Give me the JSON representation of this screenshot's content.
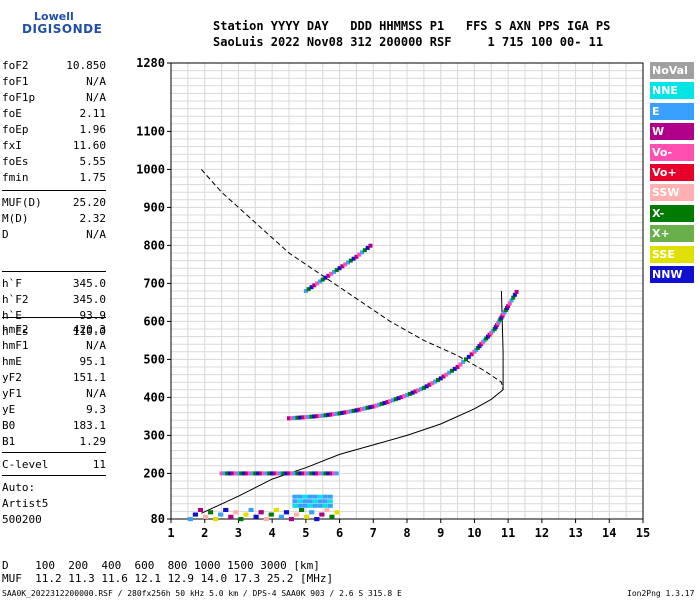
{
  "logo": {
    "line1": "Lowell",
    "line2": "DIGISONDE"
  },
  "header": {
    "line1": "Station YYYY DAY   DDD HHMMSS P1   FFS S AXN PPS IGA PS",
    "line2": "SaoLuis 2022 Nov08 312 200000 RSF     1 715 100 00- 11"
  },
  "params1": [
    {
      "key": "foF2",
      "val": "10.850"
    },
    {
      "key": "foF1",
      "val": "N/A"
    },
    {
      "key": "foF1p",
      "val": "N/A"
    },
    {
      "key": "foE",
      "val": "2.11"
    },
    {
      "key": "foEp",
      "val": "1.96"
    },
    {
      "key": "fxI",
      "val": "11.60"
    },
    {
      "key": "foEs",
      "val": "5.55"
    },
    {
      "key": "fmin",
      "val": "1.75"
    }
  ],
  "params2": [
    {
      "key": "MUF(D)",
      "val": "25.20"
    },
    {
      "key": "M(D)",
      "val": "2.32"
    },
    {
      "key": "D",
      "val": "N/A"
    }
  ],
  "params3": [
    {
      "key": "h`F",
      "val": "345.0"
    },
    {
      "key": "h`F2",
      "val": "345.0"
    },
    {
      "key": "h`E",
      "val": "93.9"
    },
    {
      "key": "h`Es",
      "val": "110.0"
    }
  ],
  "params4": [
    {
      "key": "hmF2",
      "val": "420.3"
    },
    {
      "key": "hmF1",
      "val": "N/A"
    },
    {
      "key": "hmE",
      "val": "95.1"
    },
    {
      "key": "yF2",
      "val": "151.1"
    },
    {
      "key": "yF1",
      "val": "N/A"
    },
    {
      "key": "yE",
      "val": "9.3"
    },
    {
      "key": "B0",
      "val": "183.1"
    },
    {
      "key": "B1",
      "val": "1.29"
    }
  ],
  "params5": [
    {
      "key": "C-level",
      "val": "11"
    }
  ],
  "auto": {
    "line1": "Auto:",
    "line2": "Artist5",
    "line3": "500200"
  },
  "legend": [
    {
      "label": "NoVal",
      "color": "#a0a0a0"
    },
    {
      "label": "NNE",
      "color": "#00e5e5"
    },
    {
      "label": "E",
      "color": "#3aa0ff"
    },
    {
      "label": "W",
      "color": "#b0008a"
    },
    {
      "label": "Vo-",
      "color": "#ff4fb0"
    },
    {
      "label": "Vo+",
      "color": "#e8002a"
    },
    {
      "label": "SSW",
      "color": "#ffb0b0"
    },
    {
      "label": "X-",
      "color": "#007a00"
    },
    {
      "label": "X+",
      "color": "#6ab04a"
    },
    {
      "label": "SSE",
      "color": "#e0e000"
    },
    {
      "label": "NNW",
      "color": "#1010d0"
    }
  ],
  "bottom": {
    "d_line": "D    100  200  400  600  800 1000 1500 3000 [km]",
    "muf_line": "MUF  11.2 11.3 11.6 12.1 12.9 14.0 17.3 25.2 [MHz]"
  },
  "footer": {
    "left": "SAA0K_2022312200000.RSF / 280fx256h 50 kHz 5.0 km / DPS-4 SAA0K 903 / 2.6 S 315.8 E",
    "right": "Ion2Png 1.3.17"
  },
  "chart_data": {
    "type": "scatter",
    "x_ticks": [
      "1",
      "2",
      "3",
      "4",
      "5",
      "6",
      "7",
      "8",
      "9",
      "10",
      "11",
      "12",
      "13",
      "14",
      "15"
    ],
    "y_ticks": [
      "80",
      "200",
      "300",
      "400",
      "500",
      "600",
      "700",
      "800",
      "900",
      "1000",
      "1100",
      "1280"
    ],
    "xlim": [
      1,
      15
    ],
    "ylim": [
      80,
      1280
    ],
    "grid": true,
    "series": [
      {
        "name": "O-trace",
        "color": "#b0008a",
        "x": [
          4.5,
          5.0,
          5.5,
          6.0,
          6.5,
          7.0,
          7.5,
          8.0,
          8.5,
          9.0,
          9.5,
          10.0,
          10.3,
          10.6,
          10.8,
          11.0,
          11.3
        ],
        "y": [
          345,
          348,
          352,
          358,
          366,
          376,
          390,
          406,
          425,
          450,
          480,
          520,
          550,
          580,
          610,
          640,
          685
        ]
      },
      {
        "name": "Es",
        "color": "#3aa0ff",
        "x": [
          2.5,
          3.0,
          3.5,
          4.0,
          4.5,
          5.0,
          5.5,
          6.0
        ],
        "y": [
          200,
          200,
          200,
          200,
          200,
          200,
          200,
          200
        ]
      },
      {
        "name": "multi-hop",
        "color": "#b0008a",
        "x": [
          5.0,
          5.5,
          6.0,
          6.5,
          7.0
        ],
        "y": [
          680,
          710,
          740,
          770,
          805
        ]
      }
    ],
    "profile_solid": {
      "x": [
        1.9,
        3,
        4,
        5,
        6,
        7,
        8,
        9,
        10,
        10.5,
        10.85,
        10.85,
        10.8
      ],
      "y": [
        95,
        140,
        185,
        215,
        250,
        275,
        300,
        330,
        370,
        395,
        420,
        520,
        680
      ]
    },
    "profile_dashed": {
      "x": [
        1.9,
        2.5,
        3.5,
        4.5,
        5.5,
        6.5,
        7.5,
        8.5,
        9.5,
        10.3,
        10.8,
        10.85
      ],
      "y": [
        1000,
        940,
        860,
        780,
        720,
        660,
        600,
        550,
        510,
        470,
        440,
        420
      ]
    }
  }
}
